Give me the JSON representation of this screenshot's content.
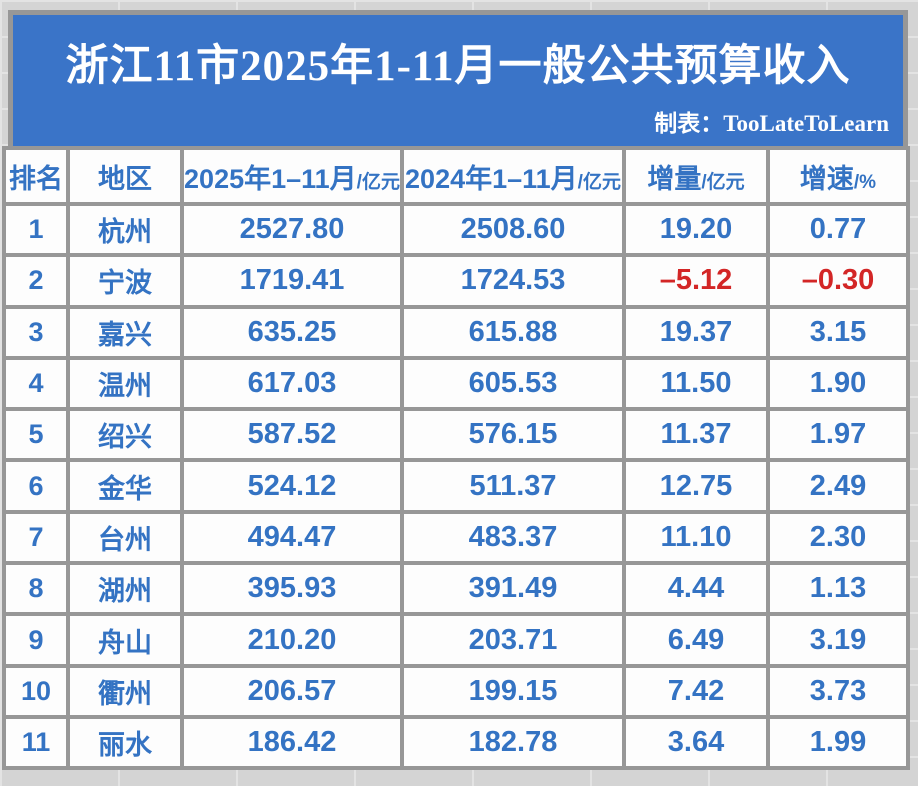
{
  "colors": {
    "banner_blue": "#3a74c8",
    "title_white": "#ffffff",
    "text_blue": "#3473c3",
    "negative_red": "#d32626",
    "grid_gray": "#979797",
    "cell_white": "#fdfdfd",
    "page_gray": "#d4d4d4"
  },
  "banner": {
    "title": "浙江11市2025年1-11月一般公共预算收入",
    "credit_label": "制表：",
    "credit_name": "TooLateToLearn"
  },
  "table": {
    "columns": [
      {
        "key": "rank",
        "label": "排名",
        "unit": ""
      },
      {
        "key": "city",
        "label": "地区",
        "unit": ""
      },
      {
        "key": "y2025",
        "label": "2025年1–11月",
        "unit": "/亿元"
      },
      {
        "key": "y2024",
        "label": "2024年1–11月",
        "unit": "/亿元"
      },
      {
        "key": "delta",
        "label": "增量",
        "unit": "/亿元"
      },
      {
        "key": "growth",
        "label": "增速",
        "unit": "/%"
      }
    ],
    "rows": [
      {
        "rank": "1",
        "city": "杭州",
        "y2025": "2527.80",
        "y2024": "2508.60",
        "delta": "19.20",
        "growth": "0.77",
        "negative": false
      },
      {
        "rank": "2",
        "city": "宁波",
        "y2025": "1719.41",
        "y2024": "1724.53",
        "delta": "–5.12",
        "growth": "–0.30",
        "negative": true
      },
      {
        "rank": "3",
        "city": "嘉兴",
        "y2025": "635.25",
        "y2024": "615.88",
        "delta": "19.37",
        "growth": "3.15",
        "negative": false
      },
      {
        "rank": "4",
        "city": "温州",
        "y2025": "617.03",
        "y2024": "605.53",
        "delta": "11.50",
        "growth": "1.90",
        "negative": false
      },
      {
        "rank": "5",
        "city": "绍兴",
        "y2025": "587.52",
        "y2024": "576.15",
        "delta": "11.37",
        "growth": "1.97",
        "negative": false
      },
      {
        "rank": "6",
        "city": "金华",
        "y2025": "524.12",
        "y2024": "511.37",
        "delta": "12.75",
        "growth": "2.49",
        "negative": false
      },
      {
        "rank": "7",
        "city": "台州",
        "y2025": "494.47",
        "y2024": "483.37",
        "delta": "11.10",
        "growth": "2.30",
        "negative": false
      },
      {
        "rank": "8",
        "city": "湖州",
        "y2025": "395.93",
        "y2024": "391.49",
        "delta": "4.44",
        "growth": "1.13",
        "negative": false
      },
      {
        "rank": "9",
        "city": "舟山",
        "y2025": "210.20",
        "y2024": "203.71",
        "delta": "6.49",
        "growth": "3.19",
        "negative": false
      },
      {
        "rank": "10",
        "city": "衢州",
        "y2025": "206.57",
        "y2024": "199.15",
        "delta": "7.42",
        "growth": "3.73",
        "negative": false
      },
      {
        "rank": "11",
        "city": "丽水",
        "y2025": "186.42",
        "y2024": "182.78",
        "delta": "3.64",
        "growth": "1.99",
        "negative": false
      }
    ]
  },
  "chart_data": {
    "type": "table",
    "title": "浙江11市2025年1-11月一般公共预算收入",
    "subtitle": "制表：TooLateToLearn",
    "columns": [
      "排名",
      "地区",
      "2025年1–11月/亿元",
      "2024年1–11月/亿元",
      "增量/亿元",
      "增速/%"
    ],
    "rows": [
      [
        1,
        "杭州",
        2527.8,
        2508.6,
        19.2,
        0.77
      ],
      [
        2,
        "宁波",
        1719.41,
        1724.53,
        -5.12,
        -0.3
      ],
      [
        3,
        "嘉兴",
        635.25,
        615.88,
        19.37,
        3.15
      ],
      [
        4,
        "温州",
        617.03,
        605.53,
        11.5,
        1.9
      ],
      [
        5,
        "绍兴",
        587.52,
        576.15,
        11.37,
        1.97
      ],
      [
        6,
        "金华",
        524.12,
        511.37,
        12.75,
        2.49
      ],
      [
        7,
        "台州",
        494.47,
        483.37,
        11.1,
        2.3
      ],
      [
        8,
        "湖州",
        395.93,
        391.49,
        4.44,
        1.13
      ],
      [
        9,
        "舟山",
        210.2,
        203.71,
        6.49,
        3.19
      ],
      [
        10,
        "衢州",
        206.57,
        199.15,
        7.42,
        3.73
      ],
      [
        11,
        "丽水",
        186.42,
        182.78,
        3.64,
        1.99
      ]
    ]
  }
}
